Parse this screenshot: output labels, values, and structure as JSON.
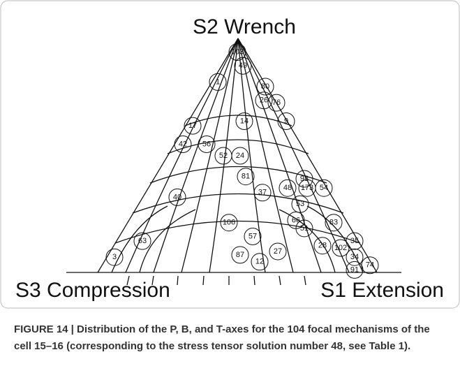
{
  "chart_data": {
    "type": "ternary",
    "top_label": "S2 Wrench",
    "left_label": "S3 Compression",
    "right_label": "S1 Extension",
    "points": [
      {
        "label": "103",
        "x": 0.5,
        "y": 0.95
      },
      {
        "label": "49",
        "x": 0.52,
        "y": 0.89
      },
      {
        "label": "80",
        "x": 0.6,
        "y": 0.8
      },
      {
        "label": "1",
        "x": 0.43,
        "y": 0.82
      },
      {
        "label": "26",
        "x": 0.595,
        "y": 0.74
      },
      {
        "label": "76",
        "x": 0.64,
        "y": 0.73
      },
      {
        "label": "17",
        "x": 0.34,
        "y": 0.63
      },
      {
        "label": "56",
        "x": 0.39,
        "y": 0.55
      },
      {
        "label": "42",
        "x": 0.305,
        "y": 0.55
      },
      {
        "label": "14",
        "x": 0.525,
        "y": 0.65
      },
      {
        "label": "9",
        "x": 0.675,
        "y": 0.65
      },
      {
        "label": "52",
        "x": 0.45,
        "y": 0.5
      },
      {
        "label": "24",
        "x": 0.51,
        "y": 0.5
      },
      {
        "label": "81",
        "x": 0.53,
        "y": 0.41
      },
      {
        "label": "37",
        "x": 0.59,
        "y": 0.34
      },
      {
        "label": "48",
        "x": 0.68,
        "y": 0.36
      },
      {
        "label": "173",
        "x": 0.75,
        "y": 0.36
      },
      {
        "label": "54",
        "x": 0.81,
        "y": 0.36
      },
      {
        "label": "98",
        "x": 0.74,
        "y": 0.4
      },
      {
        "label": "53",
        "x": 0.725,
        "y": 0.29
      },
      {
        "label": "51",
        "x": 0.74,
        "y": 0.185
      },
      {
        "label": "83",
        "x": 0.845,
        "y": 0.21
      },
      {
        "label": "40",
        "x": 0.285,
        "y": 0.32
      },
      {
        "label": "106",
        "x": 0.47,
        "y": 0.21
      },
      {
        "label": "57",
        "x": 0.555,
        "y": 0.15
      },
      {
        "label": "63",
        "x": 0.16,
        "y": 0.13
      },
      {
        "label": "3",
        "x": 0.06,
        "y": 0.06
      },
      {
        "label": "87",
        "x": 0.51,
        "y": 0.07
      },
      {
        "label": "27",
        "x": 0.645,
        "y": 0.085
      },
      {
        "label": "12",
        "x": 0.58,
        "y": 0.04
      },
      {
        "label": "35",
        "x": 0.92,
        "y": 0.13
      },
      {
        "label": "34",
        "x": 0.92,
        "y": 0.06
      },
      {
        "label": "91",
        "x": 0.92,
        "y": 0.005
      },
      {
        "label": "28",
        "x": 0.805,
        "y": 0.11
      },
      {
        "label": "102",
        "x": 0.87,
        "y": 0.1
      },
      {
        "label": "74",
        "x": 0.975,
        "y": 0.025
      },
      {
        "label": "66",
        "x": 0.71,
        "y": 0.22
      }
    ]
  },
  "caption": "FIGURE 14 | Distribution of the P, B, and T-axes for the 104 focal mechanisms of the cell 15–16 (corresponding to the stress tensor solution number 48, see Table 1)."
}
